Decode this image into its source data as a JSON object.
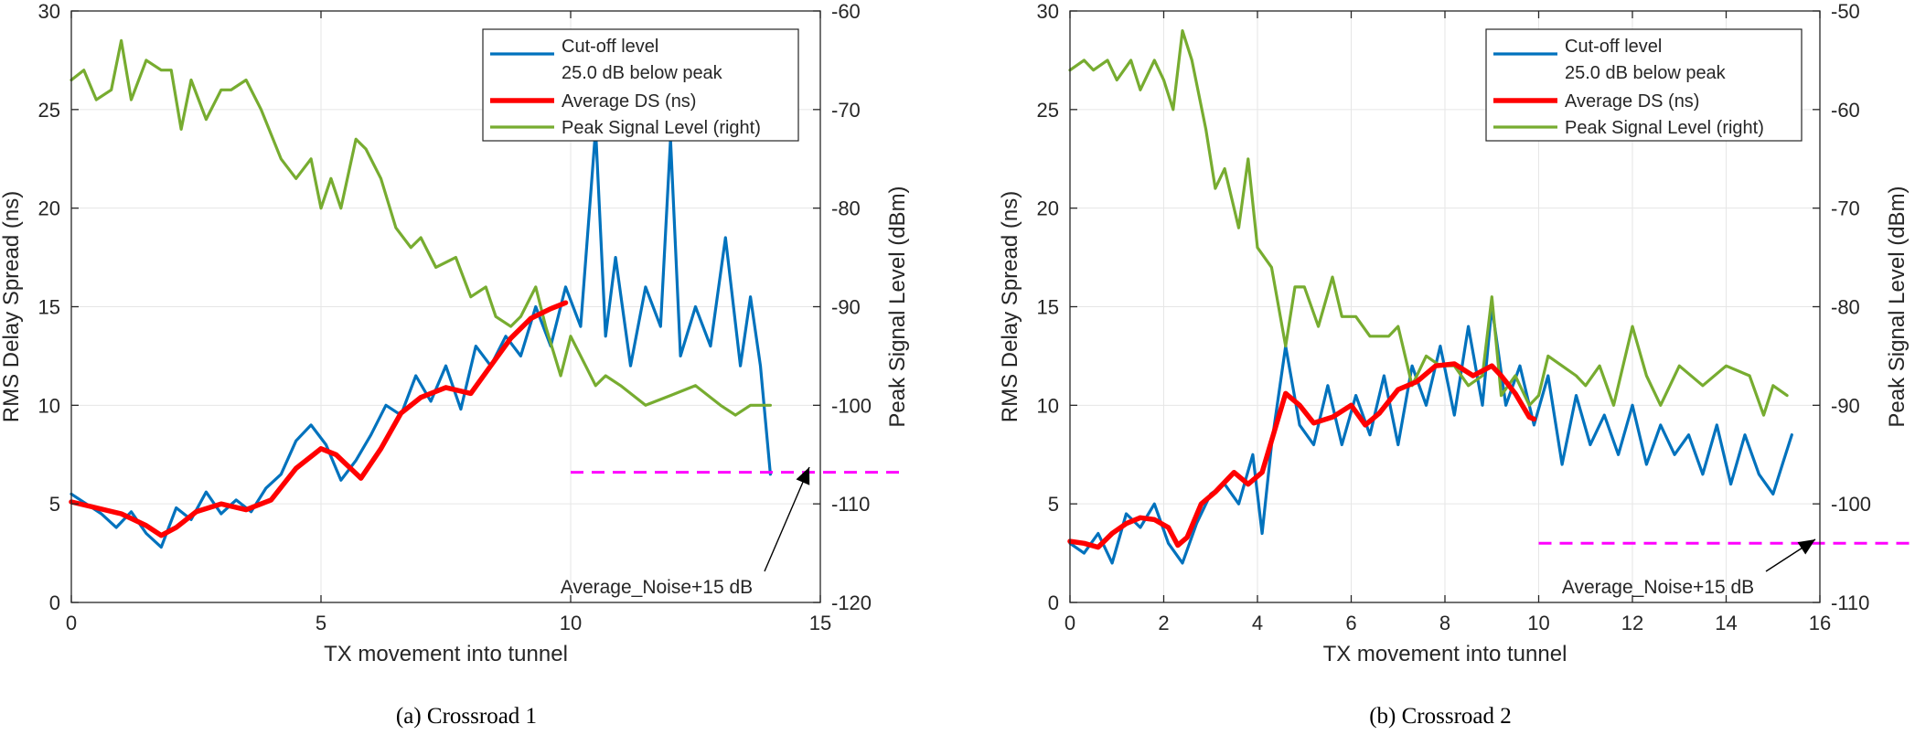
{
  "chart_data": [
    {
      "type": "line",
      "caption": "(a) Crossroad 1",
      "xlabel": "TX movement into tunnel",
      "ylabel_left": "RMS Delay Spread (ns)",
      "ylabel_right": "Peak Signal Level (dBm)",
      "xlim": [
        0,
        15
      ],
      "ylim_left": [
        0,
        30
      ],
      "ylim_right": [
        -120,
        -60
      ],
      "xticks": [
        0,
        5,
        10,
        15
      ],
      "yticks_left": [
        0,
        5,
        10,
        15,
        20,
        25,
        30
      ],
      "yticks_right": [
        -120,
        -110,
        -100,
        -90,
        -80,
        -70,
        -60
      ],
      "grid": true,
      "legend_position": "top-right",
      "legend": [
        "Cut-off level",
        "25.0 dB below peak",
        "Average DS (ns)",
        "Peak Signal Level (right)"
      ],
      "annotation": "Average_Noise+15 dB",
      "colors": {
        "cutoff": "#0072BD",
        "average": "#FF0000",
        "peak": "#77AC30",
        "noise": "#FF00FF"
      },
      "series": [
        {
          "name": "Cut-off level 25.0 dB below peak",
          "axis": "left",
          "x": [
            0,
            0.3,
            0.6,
            0.9,
            1.2,
            1.5,
            1.8,
            2.1,
            2.4,
            2.7,
            3.0,
            3.3,
            3.6,
            3.9,
            4.2,
            4.5,
            4.8,
            5.1,
            5.4,
            5.7,
            6.0,
            6.3,
            6.6,
            6.9,
            7.2,
            7.5,
            7.8,
            8.1,
            8.4,
            8.7,
            9.0,
            9.3,
            9.6,
            9.9,
            10.2,
            10.5,
            10.7,
            10.9,
            11.2,
            11.5,
            11.8,
            12.0,
            12.2,
            12.5,
            12.8,
            13.1,
            13.4,
            13.6,
            13.8,
            14.0
          ],
          "y": [
            5.5,
            5.0,
            4.5,
            3.8,
            4.6,
            3.5,
            2.8,
            4.8,
            4.2,
            5.6,
            4.5,
            5.2,
            4.6,
            5.8,
            6.5,
            8.2,
            9.0,
            8.0,
            6.2,
            7.2,
            8.5,
            10.0,
            9.5,
            11.5,
            10.2,
            12.0,
            9.8,
            13.0,
            12.0,
            13.5,
            12.5,
            15.0,
            13.0,
            16.0,
            14.0,
            24.0,
            13.5,
            17.5,
            12.0,
            16.0,
            14.0,
            23.5,
            12.5,
            15.0,
            13.0,
            18.5,
            12.0,
            15.5,
            12.0,
            6.5
          ]
        },
        {
          "name": "Average DS (ns)",
          "axis": "left",
          "x": [
            0,
            0.5,
            1.0,
            1.5,
            1.8,
            2.1,
            2.5,
            3.0,
            3.5,
            4.0,
            4.5,
            5.0,
            5.3,
            5.8,
            6.2,
            6.6,
            7.0,
            7.5,
            8.0,
            8.4,
            8.8,
            9.2,
            9.6,
            9.9
          ],
          "y": [
            5.1,
            4.8,
            4.5,
            3.9,
            3.4,
            3.8,
            4.6,
            5.0,
            4.7,
            5.2,
            6.8,
            7.8,
            7.5,
            6.3,
            7.8,
            9.6,
            10.4,
            10.9,
            10.6,
            12.0,
            13.4,
            14.4,
            14.9,
            15.2
          ]
        },
        {
          "name": "Peak Signal Level (right)",
          "axis": "right",
          "x": [
            0,
            0.25,
            0.5,
            0.8,
            1.0,
            1.2,
            1.5,
            1.8,
            2.0,
            2.2,
            2.4,
            2.7,
            3.0,
            3.2,
            3.5,
            3.8,
            4.2,
            4.5,
            4.8,
            5.0,
            5.2,
            5.4,
            5.7,
            5.9,
            6.2,
            6.5,
            6.8,
            7.0,
            7.3,
            7.7,
            8.0,
            8.3,
            8.5,
            8.8,
            9.0,
            9.3,
            9.5,
            9.8,
            10.0,
            10.3,
            10.5,
            10.7,
            11.0,
            11.5,
            12.0,
            12.5,
            13.0,
            13.3,
            13.6,
            14.0
          ],
          "y": [
            -67,
            -66,
            -69,
            -68,
            -63,
            -69,
            -65,
            -66,
            -66,
            -72,
            -67,
            -71,
            -68,
            -68,
            -67,
            -70,
            -75,
            -77,
            -75,
            -80,
            -77,
            -80,
            -73,
            -74,
            -77,
            -82,
            -84,
            -83,
            -86,
            -85,
            -89,
            -88,
            -91,
            -92,
            -91,
            -88,
            -92,
            -97,
            -93,
            -96,
            -98,
            -97,
            -98,
            -100,
            -99,
            -98,
            -100,
            -101,
            -100,
            -100
          ]
        }
      ],
      "noise_level": {
        "axis": "left",
        "y": 6.6,
        "x_start": 10,
        "x_end": 15
      }
    },
    {
      "type": "line",
      "caption": "(b) Crossroad 2",
      "xlabel": "TX movement into tunnel",
      "ylabel_left": "RMS Delay Spread (ns)",
      "ylabel_right": "Peak Signal Level (dBm)",
      "xlim": [
        0,
        16
      ],
      "ylim_left": [
        0,
        30
      ],
      "ylim_right": [
        -110,
        -50
      ],
      "xticks": [
        0,
        2,
        4,
        6,
        8,
        10,
        12,
        14,
        16
      ],
      "yticks_left": [
        0,
        5,
        10,
        15,
        20,
        25,
        30
      ],
      "yticks_right": [
        -110,
        -100,
        -90,
        -80,
        -70,
        -60,
        -50
      ],
      "grid": true,
      "legend_position": "top-right",
      "legend": [
        "Cut-off level",
        "25.0 dB below peak",
        "Average DS (ns)",
        "Peak Signal Level (right)"
      ],
      "annotation": "Average_Noise+15 dB",
      "colors": {
        "cutoff": "#0072BD",
        "average": "#FF0000",
        "peak": "#77AC30",
        "noise": "#FF00FF"
      },
      "series": [
        {
          "name": "Cut-off level 25.0 dB below peak",
          "axis": "left",
          "x": [
            0,
            0.3,
            0.6,
            0.9,
            1.2,
            1.5,
            1.8,
            2.1,
            2.4,
            2.7,
            3.0,
            3.3,
            3.6,
            3.9,
            4.1,
            4.3,
            4.6,
            4.9,
            5.2,
            5.5,
            5.8,
            6.1,
            6.4,
            6.7,
            7.0,
            7.3,
            7.6,
            7.9,
            8.2,
            8.5,
            8.8,
            9.0,
            9.3,
            9.6,
            9.9,
            10.2,
            10.5,
            10.8,
            11.1,
            11.4,
            11.7,
            12.0,
            12.3,
            12.6,
            12.9,
            13.2,
            13.5,
            13.8,
            14.1,
            14.4,
            14.7,
            15.0,
            15.2,
            15.4
          ],
          "y": [
            3.0,
            2.5,
            3.5,
            2.0,
            4.5,
            3.8,
            5.0,
            3.0,
            2.0,
            4.0,
            5.5,
            6.0,
            5.0,
            7.5,
            3.5,
            8.0,
            13.0,
            9.0,
            8.0,
            11.0,
            8.0,
            10.5,
            8.5,
            11.5,
            8.0,
            12.0,
            10.0,
            13.0,
            9.5,
            14.0,
            10.0,
            15.0,
            10.0,
            12.0,
            9.0,
            11.5,
            7.0,
            10.5,
            8.0,
            9.5,
            7.5,
            10.0,
            7.0,
            9.0,
            7.5,
            8.5,
            6.5,
            9.0,
            6.0,
            8.5,
            6.5,
            5.5,
            7.0,
            8.5
          ]
        },
        {
          "name": "Average DS (ns)",
          "axis": "left",
          "x": [
            0,
            0.3,
            0.6,
            0.9,
            1.2,
            1.5,
            1.8,
            2.1,
            2.3,
            2.5,
            2.8,
            3.1,
            3.5,
            3.8,
            4.1,
            4.4,
            4.6,
            4.9,
            5.2,
            5.6,
            6.0,
            6.3,
            6.6,
            7.0,
            7.4,
            7.8,
            8.2,
            8.6,
            9.0,
            9.2,
            9.5,
            9.8,
            9.9
          ],
          "y": [
            3.1,
            3.0,
            2.8,
            3.5,
            4.0,
            4.3,
            4.2,
            3.8,
            2.9,
            3.3,
            5.0,
            5.6,
            6.6,
            6.0,
            6.6,
            9.0,
            10.6,
            10.0,
            9.1,
            9.4,
            10.0,
            9.0,
            9.6,
            10.8,
            11.2,
            12.0,
            12.1,
            11.5,
            12.0,
            11.5,
            10.6,
            9.4,
            9.3
          ]
        },
        {
          "name": "Peak Signal Level (right)",
          "axis": "right",
          "x": [
            0,
            0.3,
            0.5,
            0.8,
            1.0,
            1.3,
            1.5,
            1.8,
            2.0,
            2.2,
            2.4,
            2.6,
            2.9,
            3.1,
            3.3,
            3.6,
            3.8,
            4.0,
            4.3,
            4.6,
            4.8,
            5.0,
            5.3,
            5.6,
            5.8,
            6.1,
            6.4,
            6.8,
            7.0,
            7.3,
            7.6,
            7.9,
            8.2,
            8.5,
            8.8,
            9.0,
            9.2,
            9.5,
            9.8,
            10.0,
            10.2,
            10.5,
            10.8,
            11.0,
            11.3,
            11.6,
            12.0,
            12.3,
            12.6,
            13.0,
            13.5,
            14.0,
            14.5,
            14.8,
            15.0,
            15.3
          ],
          "y": [
            -56,
            -55,
            -56,
            -55,
            -57,
            -55,
            -58,
            -55,
            -57,
            -60,
            -52,
            -55,
            -62,
            -68,
            -66,
            -72,
            -65,
            -74,
            -76,
            -84,
            -78,
            -78,
            -82,
            -77,
            -81,
            -81,
            -83,
            -83,
            -82,
            -88,
            -85,
            -86,
            -86,
            -88,
            -87,
            -79,
            -89,
            -87,
            -90,
            -89,
            -85,
            -86,
            -87,
            -88,
            -86,
            -90,
            -82,
            -87,
            -90,
            -86,
            -88,
            -86,
            -87,
            -91,
            -88,
            -89
          ]
        }
      ],
      "noise_level": {
        "axis": "left",
        "y": 3.0,
        "x_start": 10,
        "x_end": 16
      }
    }
  ]
}
